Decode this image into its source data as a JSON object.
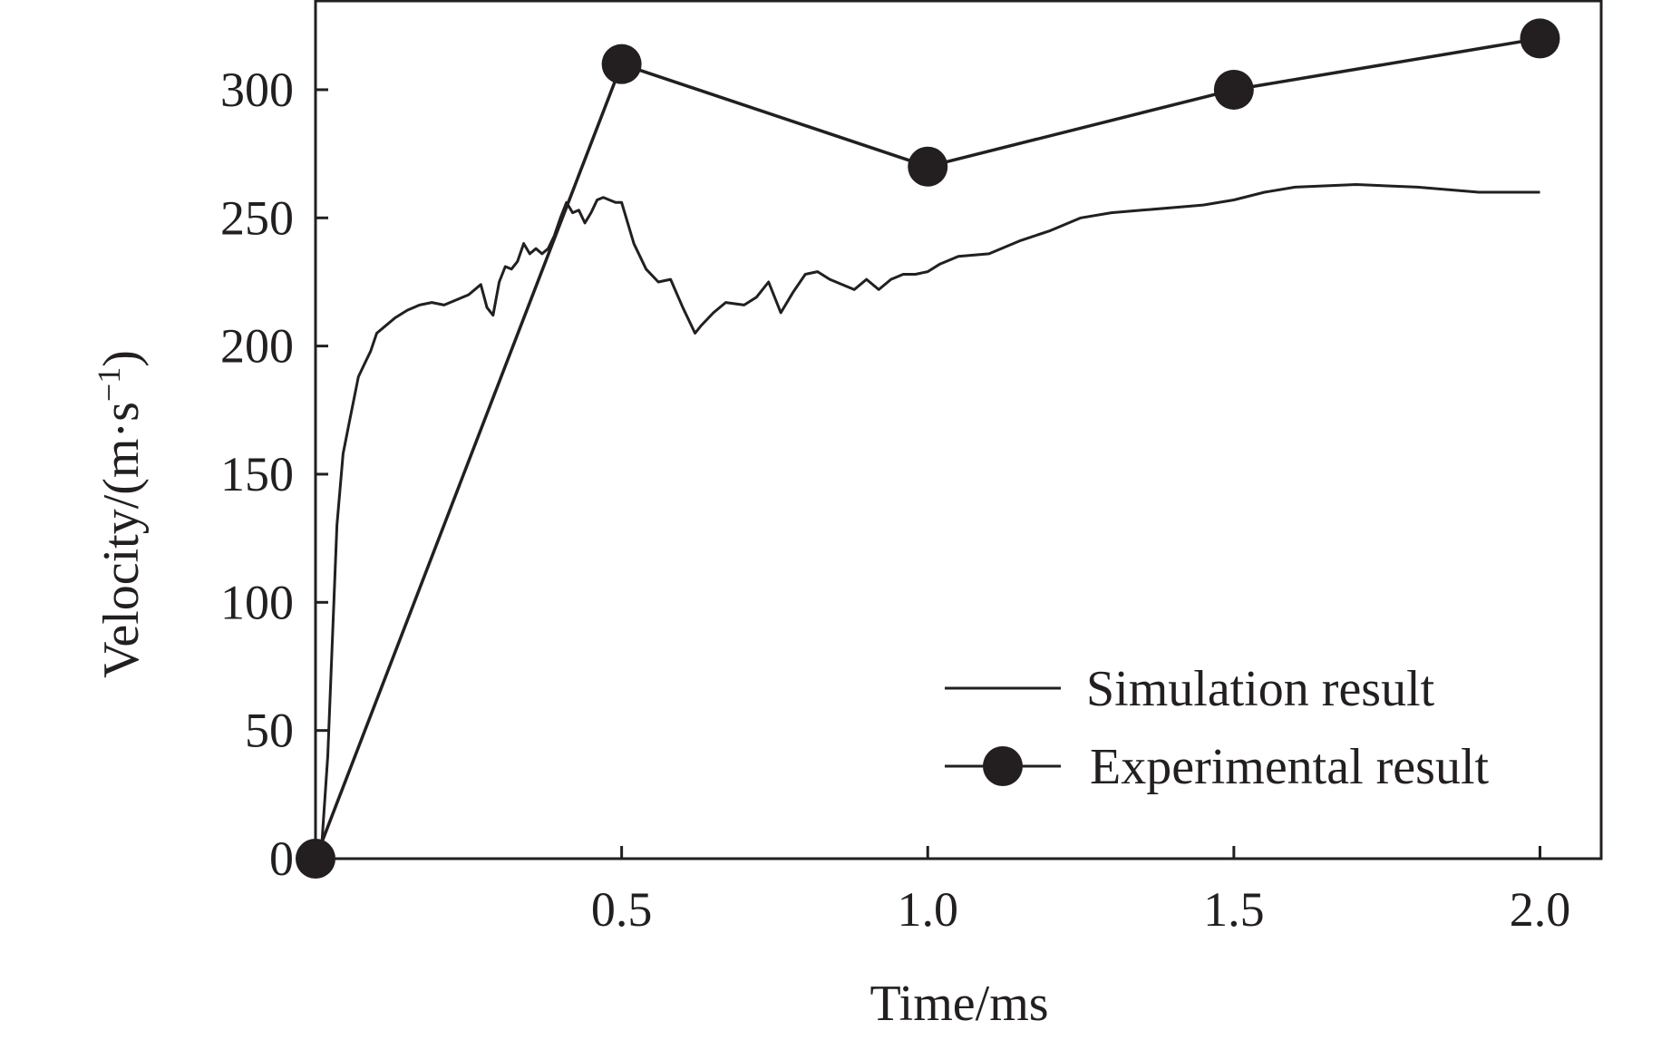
{
  "chart_data": {
    "type": "line",
    "title": "",
    "xlabel": "Time/ms",
    "ylabel": "Velocity/(m·s",
    "ylabel_superscript": "−1",
    "ylabel_close": ")",
    "xlim": [
      0,
      2.1
    ],
    "ylim": [
      0,
      335
    ],
    "x_ticks": [
      0.5,
      1.0,
      1.5,
      2.0
    ],
    "x_tick_labels": [
      "0.5",
      "1.0",
      "1.5",
      "2.0"
    ],
    "y_ticks": [
      0,
      50,
      100,
      150,
      200,
      250,
      300
    ],
    "y_tick_labels": [
      "0",
      "50",
      "100",
      "150",
      "200",
      "250",
      "300"
    ],
    "grid": false,
    "legend_position": "bottom-right",
    "series": [
      {
        "name": "Simulation result",
        "marker": "none",
        "color": "#231f20",
        "x": [
          0,
          0.01,
          0.02,
          0.035,
          0.045,
          0.055,
          0.065,
          0.07,
          0.08,
          0.09,
          0.1,
          0.11,
          0.12,
          0.13,
          0.15,
          0.17,
          0.19,
          0.21,
          0.23,
          0.25,
          0.27,
          0.28,
          0.29,
          0.3,
          0.31,
          0.32,
          0.33,
          0.34,
          0.35,
          0.36,
          0.37,
          0.38,
          0.39,
          0.4,
          0.41,
          0.42,
          0.43,
          0.44,
          0.45,
          0.46,
          0.47,
          0.48,
          0.49,
          0.5,
          0.52,
          0.54,
          0.56,
          0.58,
          0.6,
          0.62,
          0.63,
          0.65,
          0.67,
          0.7,
          0.72,
          0.74,
          0.76,
          0.78,
          0.8,
          0.82,
          0.84,
          0.86,
          0.88,
          0.9,
          0.92,
          0.94,
          0.96,
          0.98,
          1.0,
          1.02,
          1.05,
          1.1,
          1.15,
          1.2,
          1.25,
          1.3,
          1.35,
          1.4,
          1.45,
          1.5,
          1.55,
          1.6,
          1.7,
          1.8,
          1.9,
          2.0
        ],
        "values": [
          0,
          5,
          40,
          130,
          158,
          170,
          182,
          188,
          193,
          198,
          205,
          207,
          209,
          211,
          214,
          216,
          217,
          216,
          218,
          220,
          224,
          215,
          212,
          225,
          231,
          230,
          233,
          240,
          236,
          238,
          236,
          238,
          243,
          250,
          256,
          252,
          253,
          248,
          252,
          257,
          258,
          257,
          256,
          256,
          240,
          230,
          225,
          226,
          215,
          205,
          208,
          213,
          217,
          216,
          219,
          225,
          213,
          221,
          228,
          229,
          226,
          224,
          222,
          226,
          222,
          226,
          228,
          228,
          229,
          232,
          235,
          236,
          241,
          245,
          250,
          252,
          253,
          254,
          255,
          257,
          260,
          262,
          263,
          262,
          260,
          260
        ]
      },
      {
        "name": "Experimental result",
        "marker": "circle",
        "color": "#231f20",
        "x": [
          0,
          0.5,
          1.0,
          1.5,
          2.0
        ],
        "values": [
          0,
          310,
          270,
          300,
          320
        ]
      }
    ]
  }
}
